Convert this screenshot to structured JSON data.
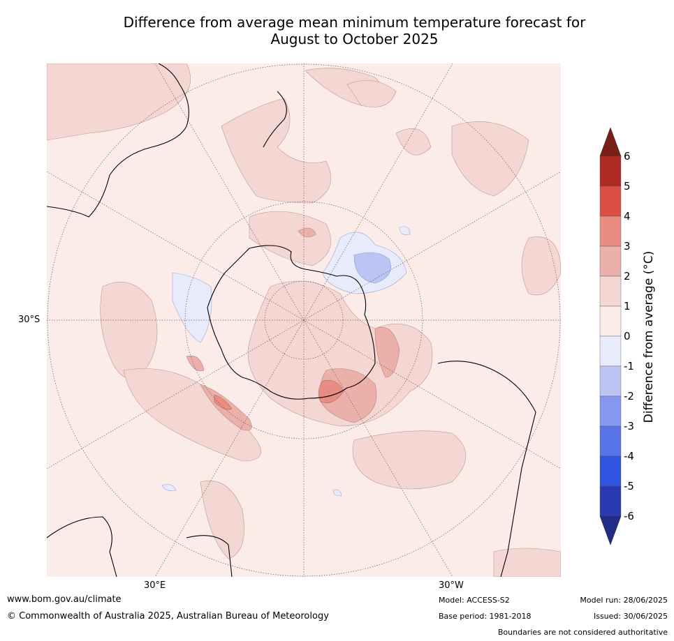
{
  "title_line1": "Difference from average mean minimum temperature forecast for",
  "title_line2": "August to October 2025",
  "map": {
    "projection": "south-polar-stereographic",
    "lat_label": "30°S",
    "lon_labels": [
      "30°E",
      "30°W"
    ],
    "gridlines": true,
    "dominant_anomaly_range": "0 to 1",
    "colors": {
      "m6": "#1f2d86",
      "m5": "#2a3ab5",
      "m4": "#2f54e0",
      "m3": "#5872e8",
      "m2": "#8597ee",
      "m1": "#bcc4f3",
      "n0": "#e8ebfb",
      "p0": "#fbecea",
      "p1": "#f4d6d3",
      "p2": "#ecb0aa",
      "p3": "#e88c84",
      "p4": "#dc4d44",
      "p5": "#ad2a22",
      "p6": "#7a1e17"
    }
  },
  "colorbar": {
    "label": "Difference from average (",
    "label_unit": "°C)",
    "ticks": [
      "6",
      "5",
      "4",
      "3",
      "2",
      "1",
      "0",
      "-1",
      "-2",
      "-3",
      "-4",
      "-5",
      "-6"
    ]
  },
  "footer": {
    "url": "www.bom.gov.au/climate",
    "copyright": "© Commonwealth of Australia 2025, Australian Bureau of Meteorology",
    "model": "Model: ACCESS-S2",
    "base_period": "Base period: 1981-2018",
    "model_run": "Model run: 28/06/2025",
    "issued": "Issued: 30/06/2025",
    "disclaimer": "Boundaries are not considered authoritative"
  }
}
